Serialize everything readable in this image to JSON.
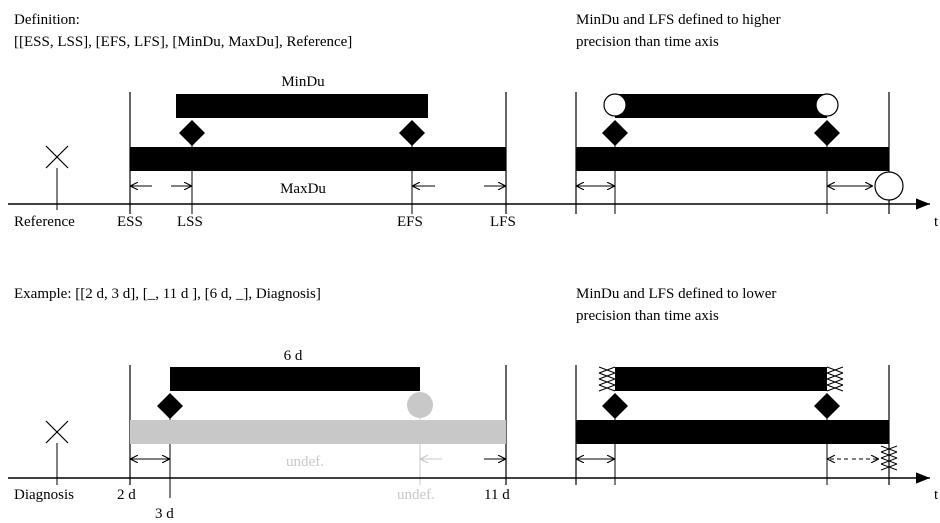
{
  "top_left": {
    "heading_line1": "Definition:",
    "heading_line2": "[[ESS, LSS], [EFS, LFS], [MinDu, MaxDu], Reference]",
    "bar_label_min": "MinDu",
    "bar_label_max": "MaxDu",
    "axis_labels": {
      "reference": "Reference",
      "ess": "ESS",
      "lss": "LSS",
      "efs": "EFS",
      "lfs": "LFS"
    }
  },
  "top_right": {
    "heading_line1": "MinDu and LFS defined to higher",
    "heading_line2": "precision than time axis",
    "axis_label": "t"
  },
  "bottom_left": {
    "heading": "Example: [[2 d, 3 d], [_, 11 d ], [6 d, _], Diagnosis]",
    "bar_label_min": "6 d",
    "bar_label_max": "undef.",
    "axis_labels": {
      "reference": "Diagnosis",
      "ess": "2 d",
      "lss": "3 d",
      "efs": "undef.",
      "lfs": "11 d"
    }
  },
  "bottom_right": {
    "heading_line1": "MinDu and LFS defined to lower",
    "heading_line2": "precision than time axis",
    "axis_label": "t"
  },
  "colors": {
    "ink": "#000000",
    "undefined_gray": "#c8c8c8"
  }
}
